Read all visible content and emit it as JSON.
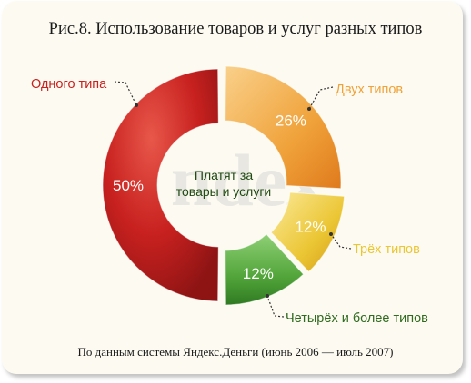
{
  "title": "Рис.8. Использование товаров и услуг разных типов",
  "source": "По данным системы Яндекс.Деньги (июнь 2006 — июль 2007)",
  "watermark": "ndex",
  "colors": {
    "one": "#c8211f",
    "two": "#f0a23a",
    "three": "#ebc634",
    "four": "#52a53a"
  },
  "chart_data": {
    "type": "pie",
    "donut": true,
    "center_label": [
      "Платят за",
      "товары и услуги"
    ],
    "slices": [
      {
        "label": "Одного типа",
        "value": 50,
        "value_label": "50%"
      },
      {
        "label": "Двух типов",
        "value": 26,
        "value_label": "26%"
      },
      {
        "label": "Трёх типов",
        "value": 12,
        "value_label": "12%"
      },
      {
        "label": "Четырёх и более типов",
        "value": 12,
        "value_label": "12%"
      }
    ]
  }
}
